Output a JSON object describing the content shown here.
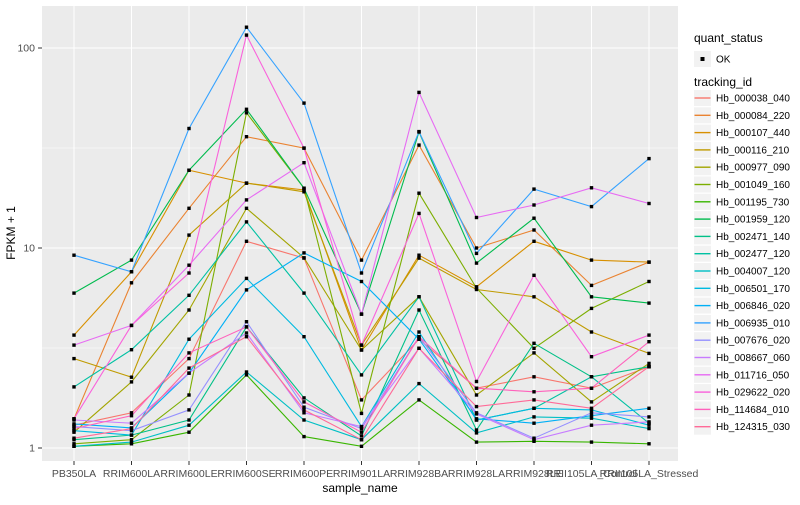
{
  "colors": {
    "panel_background": "#EBEBEB",
    "grid_major": "#FFFFFF",
    "grid_minor": "#FFFFFF",
    "axis_text": "#4D4D4D",
    "axis_tick": "#333333",
    "point": "#000000",
    "legend_key_background": "#F2F2F2"
  },
  "chart_data": {
    "type": "line",
    "title": "",
    "xlabel": "sample_name",
    "ylabel": "FPKM + 1",
    "y_scale": "log10",
    "ylim": [
      0.9,
      160
    ],
    "grid": true,
    "legend_position": "right",
    "y_ticks": [
      1,
      10,
      100
    ],
    "y_tick_labels": [
      "1",
      "10",
      "100"
    ],
    "y_minor_ticks": [
      3.1623,
      31.6228
    ],
    "x_categories": [
      "PB350LA",
      "RRIM600LA",
      "RRIM600LE",
      "RRIM600SE",
      "RRIM600PE",
      "RRIM901LA",
      "RRIM928BA",
      "RRIM928LA",
      "RRIM928LE",
      "RRII105LA_Control",
      "RRII105LA_Stressed"
    ],
    "legend": {
      "quant_status": {
        "title": "quant_status",
        "items": [
          {
            "label": "OK",
            "symbol": "black-point"
          }
        ]
      },
      "tracking_id": {
        "title": "tracking_id"
      }
    },
    "series": [
      {
        "name": "Hb_000038_040",
        "color": "#F8766D",
        "values": [
          1.3,
          1.5,
          2.8,
          10.8,
          8.9,
          1.74,
          3.5,
          1.99,
          2.27,
          1.99,
          2.55
        ]
      },
      {
        "name": "Hb_000084_220",
        "color": "#EA8331",
        "values": [
          1.4,
          6.7,
          15.8,
          36.0,
          31.6,
          8.7,
          32.7,
          10.0,
          12.3,
          6.5,
          8.5
        ]
      },
      {
        "name": "Hb_000107_440",
        "color": "#D89000",
        "values": [
          3.67,
          7.6,
          24.5,
          21.1,
          19.5,
          3.09,
          9.2,
          6.4,
          10.8,
          8.7,
          8.5
        ]
      },
      {
        "name": "Hb_000116_210",
        "color": "#C09B00",
        "values": [
          2.8,
          2.26,
          11.6,
          21.1,
          19.1,
          3.27,
          8.9,
          6.2,
          5.7,
          3.8,
          2.97
        ]
      },
      {
        "name": "Hb_000977_090",
        "color": "#A3A500",
        "values": [
          1.2,
          2.14,
          4.9,
          15.8,
          8.93,
          3.09,
          5.7,
          1.84,
          2.99,
          1.7,
          2.65
        ]
      },
      {
        "name": "Hb_001049_160",
        "color": "#7CAE00",
        "values": [
          1.05,
          1.1,
          1.84,
          47.4,
          19.9,
          1.49,
          18.8,
          6.3,
          3.15,
          4.99,
          6.8
        ]
      },
      {
        "name": "Hb_001195_730",
        "color": "#39B600",
        "values": [
          1.02,
          1.05,
          1.2,
          2.32,
          1.14,
          1.02,
          1.74,
          1.07,
          1.08,
          1.07,
          1.05
        ]
      },
      {
        "name": "Hb_001959_120",
        "color": "#00BB4E",
        "values": [
          5.95,
          8.7,
          24.5,
          49.4,
          19.9,
          4.67,
          38.0,
          8.4,
          14.1,
          5.7,
          5.3
        ]
      },
      {
        "name": "Hb_002471_140",
        "color": "#00C087",
        "values": [
          1.1,
          1.16,
          1.38,
          4.03,
          1.78,
          1.15,
          4.9,
          1.23,
          3.34,
          2.27,
          2.55
        ]
      },
      {
        "name": "Hb_002477_120",
        "color": "#00C1A3",
        "values": [
          2.02,
          3.1,
          5.8,
          13.5,
          5.95,
          2.32,
          5.7,
          1.38,
          1.58,
          2.27,
          1.33
        ]
      },
      {
        "name": "Hb_004007_120",
        "color": "#00BFC4",
        "values": [
          1.02,
          1.07,
          1.3,
          2.4,
          1.38,
          1.1,
          2.1,
          1.19,
          1.43,
          1.41,
          1.25
        ]
      },
      {
        "name": "Hb_006501_170",
        "color": "#00BAE0",
        "values": [
          1.22,
          1.16,
          3.5,
          7.05,
          3.6,
          1.28,
          3.8,
          1.38,
          1.58,
          1.55,
          1.3
        ]
      },
      {
        "name": "Hb_006846_020",
        "color": "#00B0F6",
        "values": [
          1.32,
          1.26,
          2.37,
          6.17,
          9.45,
          6.8,
          3.5,
          1.4,
          1.33,
          1.45,
          1.58
        ]
      },
      {
        "name": "Hb_006935_010",
        "color": "#35A2FF",
        "values": [
          9.2,
          7.6,
          39.6,
          127.0,
          53.0,
          7.5,
          38.2,
          9.4,
          19.7,
          16.1,
          28.0
        ]
      },
      {
        "name": "Hb_007676_020",
        "color": "#9590FF",
        "values": [
          1.28,
          1.22,
          1.55,
          4.28,
          1.6,
          1.25,
          3.6,
          1.5,
          1.12,
          1.5,
          1.43
        ]
      },
      {
        "name": "Hb_008667_060",
        "color": "#C77CFF",
        "values": [
          1.38,
          1.33,
          2.37,
          3.76,
          1.5,
          1.28,
          3.15,
          1.48,
          1.1,
          1.3,
          1.35
        ]
      },
      {
        "name": "Hb_011716_050",
        "color": "#E76BF3",
        "values": [
          3.27,
          4.1,
          8.2,
          17.4,
          26.7,
          4.67,
          60.0,
          14.2,
          16.4,
          20.0,
          16.7
        ]
      },
      {
        "name": "Hb_029622_020",
        "color": "#FA62DB",
        "values": [
          1.4,
          4.1,
          7.5,
          116.0,
          31.6,
          3.27,
          14.9,
          2.15,
          7.3,
          2.86,
          3.67
        ]
      },
      {
        "name": "Hb_114684_010",
        "color": "#FF62BC",
        "values": [
          1.25,
          1.45,
          2.99,
          4.03,
          1.7,
          1.2,
          3.6,
          1.99,
          1.91,
          1.99,
          3.4
        ]
      },
      {
        "name": "Hb_124315_030",
        "color": "#FF6A98",
        "values": [
          1.12,
          1.25,
          2.51,
          3.6,
          1.55,
          1.1,
          3.15,
          1.61,
          1.74,
          1.58,
          2.55
        ]
      }
    ]
  }
}
